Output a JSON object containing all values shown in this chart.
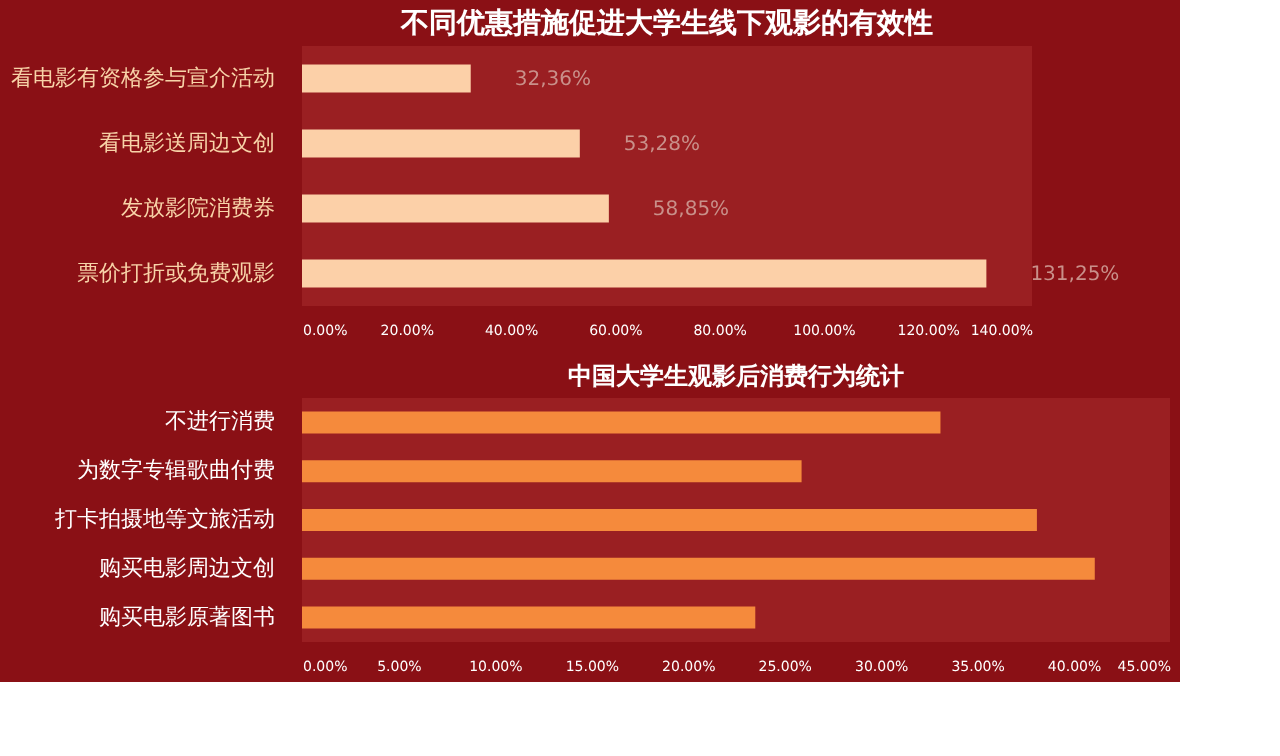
{
  "chart_data": [
    {
      "type": "bar",
      "orientation": "horizontal",
      "title": "不同优惠措施促进大学生线下观影的有效性",
      "categories": [
        "看电影有资格参与宣介活动",
        "看电影送周边文创",
        "发放影院消费券",
        "票价打折或免费观影"
      ],
      "values": [
        32.36,
        53.28,
        58.85,
        131.25
      ],
      "value_labels": [
        "32,36%",
        "53,28%",
        "58,85%",
        "131,25%"
      ],
      "color": "#fcd0a8",
      "xlim": [
        0,
        140
      ],
      "xticks": [
        {
          "value": 0,
          "label": "0.00%"
        },
        {
          "value": 20,
          "label": "20.00%"
        },
        {
          "value": 40,
          "label": "40.00%"
        },
        {
          "value": 60,
          "label": "60.00%"
        },
        {
          "value": 80,
          "label": "80.00%"
        },
        {
          "value": 100,
          "label": "100.00%"
        },
        {
          "value": 120,
          "label": "120.00%"
        },
        {
          "value": 140,
          "label": "140.00%"
        }
      ],
      "grid": false
    },
    {
      "type": "bar",
      "orientation": "horizontal",
      "title": "中国大学生观影后消费行为统计",
      "categories": [
        "不进行消费",
        "为数字专辑歌曲付费",
        "打卡拍摄地等文旅活动",
        "购买电影周边文创",
        "购买电影原著图书"
      ],
      "values": [
        33.1,
        25.9,
        38.1,
        41.1,
        23.5
      ],
      "color": "#f58a3c",
      "xlim": [
        0,
        45
      ],
      "xticks": [
        {
          "value": 0,
          "label": "0.00%"
        },
        {
          "value": 5,
          "label": "5.00%"
        },
        {
          "value": 10,
          "label": "10.00%"
        },
        {
          "value": 15,
          "label": "15.00%"
        },
        {
          "value": 20,
          "label": "20.00%"
        },
        {
          "value": 25,
          "label": "25.00%"
        },
        {
          "value": 30,
          "label": "30.00%"
        },
        {
          "value": 35,
          "label": "35.00%"
        },
        {
          "value": 40,
          "label": "40.00%"
        },
        {
          "value": 45,
          "label": "45.00%"
        }
      ],
      "grid": false
    }
  ]
}
